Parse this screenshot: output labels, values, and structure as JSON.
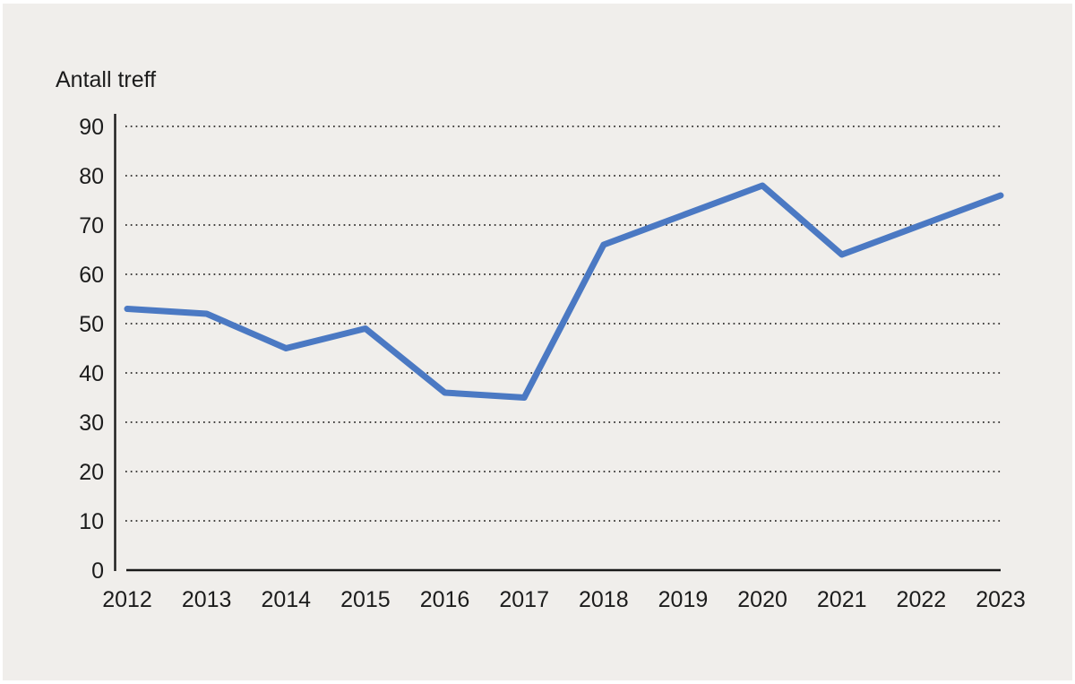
{
  "page": {
    "border_color": "#ffffff",
    "canvas_background": "#f0eeeb",
    "text_color": "#1c1c1c"
  },
  "chart_data": {
    "type": "line",
    "title": "Antall treff",
    "categories": [
      "2012",
      "2013",
      "2014",
      "2015",
      "2016",
      "2017",
      "2018",
      "2019",
      "2020",
      "2021",
      "2022",
      "2023"
    ],
    "series": [
      {
        "name": "Antall treff",
        "values": [
          53,
          52,
          45,
          49,
          36,
          35,
          66,
          72,
          78,
          64,
          70,
          76
        ],
        "color": "#4b79c3",
        "stroke_width": 7
      }
    ],
    "xlabel": "",
    "ylabel": "Antall treff",
    "ylim": [
      0,
      90
    ],
    "yticks": [
      0,
      10,
      20,
      30,
      40,
      50,
      60,
      70,
      80,
      90
    ],
    "grid": "horizontal-dotted",
    "grid_color": "#2b2a28",
    "axis_color": "#191919",
    "legend": "none"
  }
}
